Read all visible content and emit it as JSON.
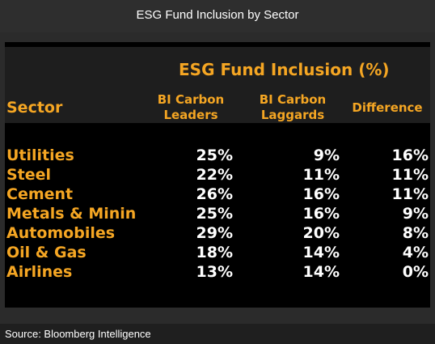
{
  "title": "ESG Fund Inclusion by Sector",
  "source": "Source: Bloomberg Intelligence",
  "colors": {
    "accent": "#f5a623",
    "value_text": "#ffffff",
    "panel_bg": "#000000",
    "header_bg": "#1e1e1e",
    "page_bg": "#2b2b2b"
  },
  "chart_data": {
    "type": "table",
    "group_header": "ESG Fund Inclusion (%)",
    "columns": {
      "sector": "Sector",
      "leaders": [
        "BI Carbon",
        "Leaders"
      ],
      "laggards": [
        "BI Carbon",
        "Laggards"
      ],
      "difference": "Difference"
    },
    "rows": [
      {
        "sector": "Utilities",
        "leaders": "25%",
        "laggards": "9%",
        "difference": "16%"
      },
      {
        "sector": "Steel",
        "leaders": "22%",
        "laggards": "11%",
        "difference": "11%"
      },
      {
        "sector": "Cement",
        "leaders": "26%",
        "laggards": "16%",
        "difference": "11%"
      },
      {
        "sector": "Metals & Minin",
        "leaders": "25%",
        "laggards": "16%",
        "difference": "9%"
      },
      {
        "sector": "Automobiles",
        "leaders": "29%",
        "laggards": "20%",
        "difference": "8%"
      },
      {
        "sector": "Oil & Gas",
        "leaders": "18%",
        "laggards": "14%",
        "difference": "4%"
      },
      {
        "sector": "Airlines",
        "leaders": "13%",
        "laggards": "14%",
        "difference": "0%"
      }
    ]
  }
}
